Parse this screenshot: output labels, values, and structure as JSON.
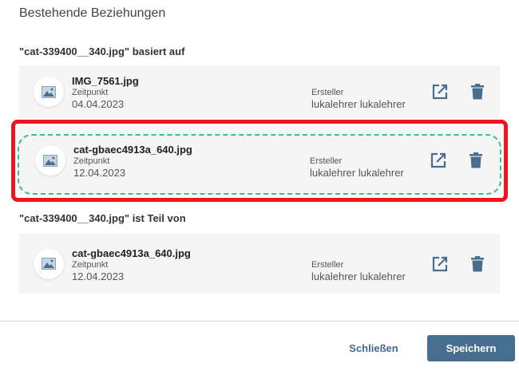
{
  "title": "Bestehende Beziehungen",
  "sections": [
    {
      "heading": "\"cat-339400__340.jpg\" basiert auf"
    },
    {
      "heading": "\"cat-339400__340.jpg\" ist Teil von"
    }
  ],
  "items": [
    {
      "name": "IMG_7561.jpg",
      "time_label": "Zeitpunkt",
      "time": "04.04.2023",
      "creator_label": "Ersteller",
      "creator": "lukalehrer lukalehrer"
    },
    {
      "name": "cat-gbaec4913a_640.jpg",
      "time_label": "Zeitpunkt",
      "time": "12.04.2023",
      "creator_label": "Ersteller",
      "creator": "lukalehrer lukalehrer"
    },
    {
      "name": "cat-gbaec4913a_640.jpg",
      "time_label": "Zeitpunkt",
      "time": "12.04.2023",
      "creator_label": "Ersteller",
      "creator": "lukalehrer lukalehrer"
    }
  ],
  "footer": {
    "close_label": "Schließen",
    "save_label": "Speichern"
  },
  "colors": {
    "accent": "#476e8e",
    "highlight": "#f0141e",
    "dashed": "#3cbf86"
  }
}
